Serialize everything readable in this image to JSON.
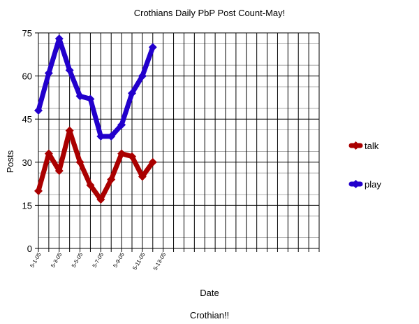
{
  "chart_data": {
    "type": "line",
    "title": "Crothians Daily PbP Post Count-May!",
    "xlabel": "Date",
    "ylabel": "Posts",
    "footer": "Crothian!!",
    "ylim": [
      0,
      75
    ],
    "yticks": [
      0,
      15,
      30,
      45,
      60,
      75
    ],
    "x_slots": 27,
    "x_tick_labels": [
      {
        "index": 0,
        "label": "5-1-05"
      },
      {
        "index": 2,
        "label": "5-3-05"
      },
      {
        "index": 4,
        "label": "5-5-05"
      },
      {
        "index": 6,
        "label": "5-7-05"
      },
      {
        "index": 8,
        "label": "5-9-05"
      },
      {
        "index": 10,
        "label": "5-11-05"
      },
      {
        "index": 12,
        "label": "5-13-05"
      }
    ],
    "grid": true,
    "legend_position": "right",
    "series": [
      {
        "name": "play",
        "color": "#2200cc",
        "values": [
          48,
          61,
          73,
          62,
          53,
          52,
          39,
          39,
          43,
          54,
          60,
          70
        ]
      },
      {
        "name": "talk",
        "color": "#aa0000",
        "values": [
          20,
          33,
          27,
          41,
          30,
          22,
          17,
          24,
          33,
          32,
          25,
          30
        ]
      }
    ],
    "legend_order": [
      "talk",
      "play"
    ]
  }
}
